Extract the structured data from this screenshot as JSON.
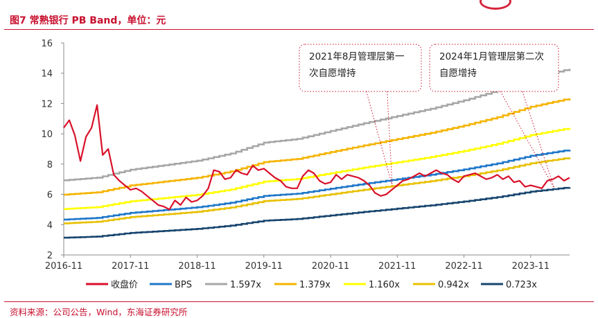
{
  "header": {
    "title": "图7  常熟银行 PB Band，单位：元"
  },
  "footer": {
    "source": "资料来源：公司公告，Wind，东海证券研究所"
  },
  "colors": {
    "brand_red": "#c8102e",
    "price": "#d9102a",
    "bps": "#1f77c8",
    "pb_1_597": "#a6a6a6",
    "pb_1_379": "#f5b400",
    "pb_1_160": "#ffff00",
    "pb_0_942": "#e8c000",
    "pb_0_723": "#17456e"
  },
  "chart_data": {
    "type": "line",
    "title": "",
    "xlabel": "",
    "ylabel": "",
    "ylim": [
      2,
      16
    ],
    "yticks": [
      2,
      4,
      6,
      8,
      10,
      12,
      14,
      16
    ],
    "x_tick_labels": [
      "2016-11",
      "2017-11",
      "2018-11",
      "2019-11",
      "2020-11",
      "2021-11",
      "2022-11",
      "2023-11"
    ],
    "x_range": [
      "2016-11",
      "2024-06"
    ],
    "grid": false,
    "legend_position": "bottom",
    "bps": [
      [
        "2016-11",
        4.34
      ],
      [
        "2017-05",
        4.45
      ],
      [
        "2017-11",
        4.78
      ],
      [
        "2018-03",
        4.9
      ],
      [
        "2018-11",
        5.15
      ],
      [
        "2019-05",
        5.45
      ],
      [
        "2019-11",
        5.9
      ],
      [
        "2020-05",
        6.05
      ],
      [
        "2020-11",
        6.38
      ],
      [
        "2021-05",
        6.7
      ],
      [
        "2021-11",
        7.0
      ],
      [
        "2022-05",
        7.3
      ],
      [
        "2022-11",
        7.65
      ],
      [
        "2023-05",
        8.05
      ],
      [
        "2023-11",
        8.55
      ],
      [
        "2024-06",
        8.95
      ]
    ],
    "series": [
      {
        "name": "收盘价",
        "values": [
          [
            "2016-11",
            10.4
          ],
          [
            "2016-12",
            10.9
          ],
          [
            "2017-01",
            9.9
          ],
          [
            "2017-02",
            8.2
          ],
          [
            "2017-03",
            9.8
          ],
          [
            "2017-04",
            10.4
          ],
          [
            "2017-05",
            11.9
          ],
          [
            "2017-06",
            8.6
          ],
          [
            "2017-07",
            9.0
          ],
          [
            "2017-08",
            7.3
          ],
          [
            "2017-09",
            6.9
          ],
          [
            "2017-10",
            6.6
          ],
          [
            "2017-11",
            6.3
          ],
          [
            "2017-12",
            6.4
          ],
          [
            "2018-01",
            6.2
          ],
          [
            "2018-02",
            5.9
          ],
          [
            "2018-03",
            5.6
          ],
          [
            "2018-04",
            5.3
          ],
          [
            "2018-05",
            5.2
          ],
          [
            "2018-06",
            5.0
          ],
          [
            "2018-07",
            5.6
          ],
          [
            "2018-08",
            5.3
          ],
          [
            "2018-09",
            5.8
          ],
          [
            "2018-10",
            5.5
          ],
          [
            "2018-11",
            5.6
          ],
          [
            "2018-12",
            5.9
          ],
          [
            "2019-01",
            6.4
          ],
          [
            "2019-02",
            7.6
          ],
          [
            "2019-03",
            7.5
          ],
          [
            "2019-04",
            7.0
          ],
          [
            "2019-05",
            7.1
          ],
          [
            "2019-06",
            7.6
          ],
          [
            "2019-07",
            7.4
          ],
          [
            "2019-08",
            7.3
          ],
          [
            "2019-09",
            7.9
          ],
          [
            "2019-10",
            7.6
          ],
          [
            "2019-11",
            7.7
          ],
          [
            "2019-12",
            7.4
          ],
          [
            "2020-01",
            7.1
          ],
          [
            "2020-02",
            6.9
          ],
          [
            "2020-03",
            6.5
          ],
          [
            "2020-04",
            6.4
          ],
          [
            "2020-05",
            6.4
          ],
          [
            "2020-06",
            7.2
          ],
          [
            "2020-07",
            7.6
          ],
          [
            "2020-08",
            7.4
          ],
          [
            "2020-09",
            6.9
          ],
          [
            "2020-10",
            6.7
          ],
          [
            "2020-11",
            6.8
          ],
          [
            "2020-12",
            7.3
          ],
          [
            "2021-01",
            7.0
          ],
          [
            "2021-02",
            7.3
          ],
          [
            "2021-03",
            7.2
          ],
          [
            "2021-04",
            7.1
          ],
          [
            "2021-05",
            6.9
          ],
          [
            "2021-06",
            6.6
          ],
          [
            "2021-07",
            6.1
          ],
          [
            "2021-08",
            5.9
          ],
          [
            "2021-09",
            6.0
          ],
          [
            "2021-10",
            6.3
          ],
          [
            "2021-11",
            6.6
          ],
          [
            "2021-12",
            6.9
          ],
          [
            "2022-01",
            7.0
          ],
          [
            "2022-02",
            7.2
          ],
          [
            "2022-03",
            7.4
          ],
          [
            "2022-04",
            7.2
          ],
          [
            "2022-05",
            7.4
          ],
          [
            "2022-06",
            7.6
          ],
          [
            "2022-07",
            7.4
          ],
          [
            "2022-08",
            7.3
          ],
          [
            "2022-09",
            7.0
          ],
          [
            "2022-10",
            6.8
          ],
          [
            "2022-11",
            7.2
          ],
          [
            "2022-12",
            7.3
          ],
          [
            "2023-01",
            7.4
          ],
          [
            "2023-02",
            7.2
          ],
          [
            "2023-03",
            7.0
          ],
          [
            "2023-04",
            7.1
          ],
          [
            "2023-05",
            7.3
          ],
          [
            "2023-06",
            7.0
          ],
          [
            "2023-07",
            7.2
          ],
          [
            "2023-08",
            6.8
          ],
          [
            "2023-09",
            6.9
          ],
          [
            "2023-10",
            6.5
          ],
          [
            "2023-11",
            6.6
          ],
          [
            "2023-12",
            6.5
          ],
          [
            "2024-01",
            6.4
          ],
          [
            "2024-02",
            6.9
          ],
          [
            "2024-03",
            7.0
          ],
          [
            "2024-04",
            7.2
          ],
          [
            "2024-05",
            6.9
          ],
          [
            "2024-06",
            7.1
          ]
        ]
      },
      {
        "name": "BPS",
        "multiple": 1.0
      },
      {
        "name": "1.597x",
        "multiple": 1.597
      },
      {
        "name": "1.379x",
        "multiple": 1.379
      },
      {
        "name": "1.160x",
        "multiple": 1.16
      },
      {
        "name": "0.942x",
        "multiple": 0.942
      },
      {
        "name": "0.723x",
        "multiple": 0.723
      }
    ],
    "annotations": [
      {
        "line1": "2021年8月管理层第一",
        "line2": "次自愿增持",
        "date": "2021-08"
      },
      {
        "line1": "2024年1月管理层第二次",
        "line2": "自愿增持",
        "date": "2024-01"
      }
    ]
  }
}
